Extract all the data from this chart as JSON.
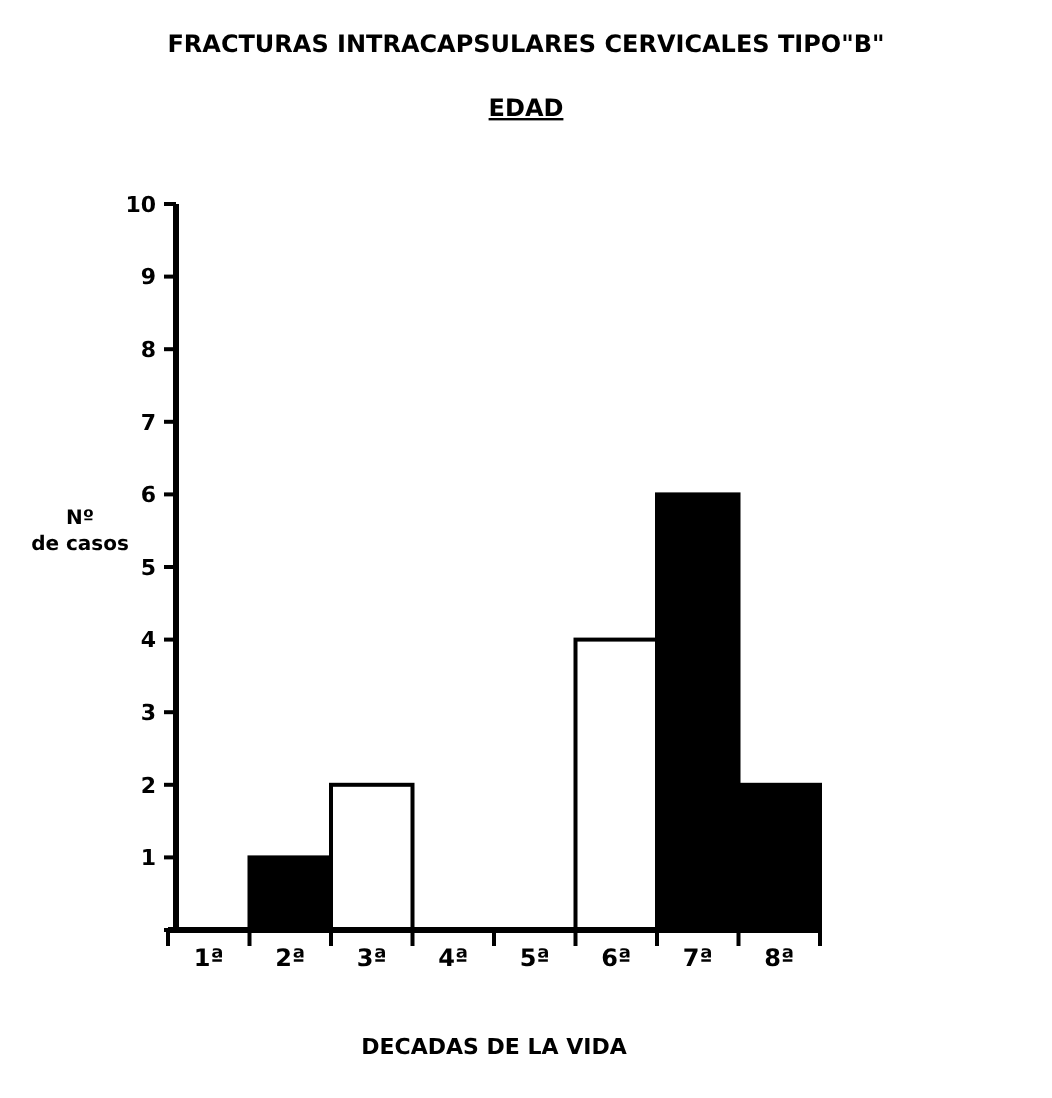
{
  "chart_data": {
    "type": "bar",
    "title": "FRACTURAS INTRACAPSULARES CERVICALES TIPO\"B\"",
    "subtitle": "EDAD",
    "xlabel": "DECADAS DE LA VIDA",
    "ylabel": "Nº de casos",
    "categories": [
      "1ª",
      "2ª",
      "3ª",
      "4ª",
      "5ª",
      "6ª",
      "7ª",
      "8ª"
    ],
    "values": [
      0,
      1,
      2,
      0,
      0,
      4,
      6,
      2
    ],
    "colors": [
      "#000000",
      "#000000",
      "#ffffff",
      "#ffffff",
      "#ffffff",
      "#ffffff",
      "#000000",
      "#000000"
    ],
    "ylim": [
      0,
      10
    ],
    "yticks": [
      {
        "value": 0,
        "label": null
      },
      1,
      2,
      3,
      4,
      5,
      6,
      7,
      8,
      9,
      10
    ],
    "grid": false
  }
}
